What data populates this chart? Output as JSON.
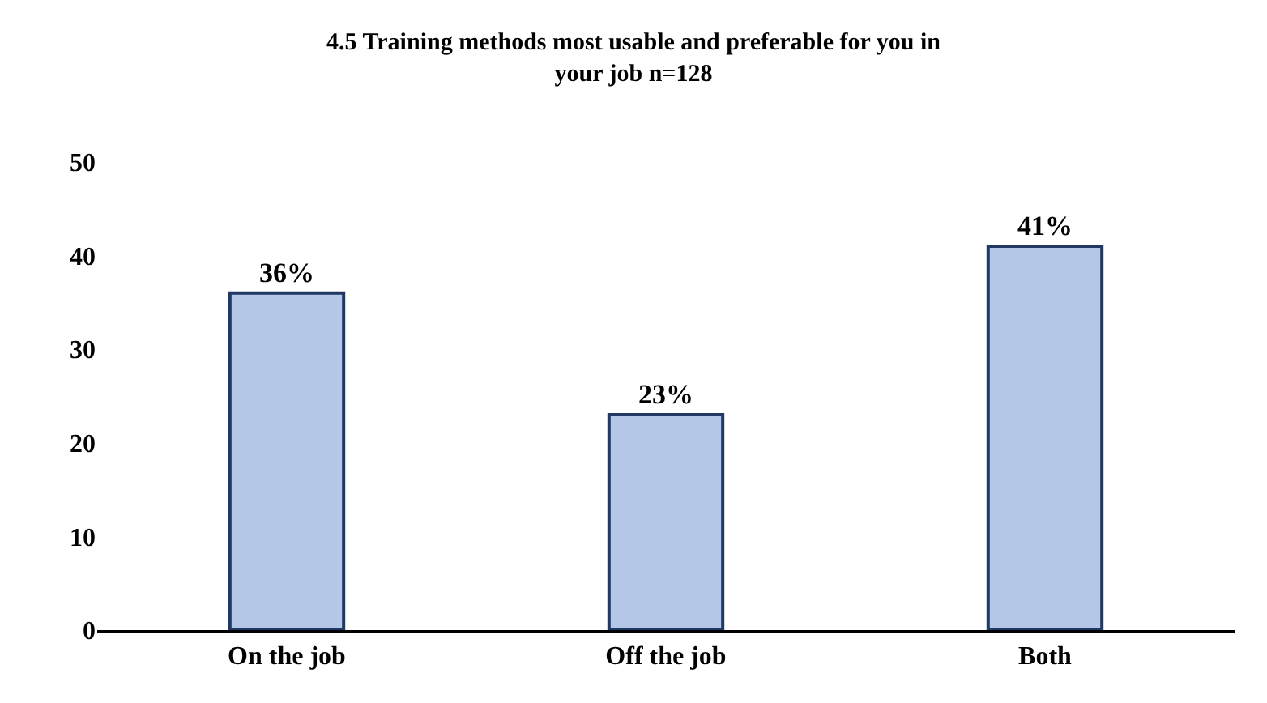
{
  "chart_data": {
    "type": "bar",
    "title": "4.5 Training methods most usable and preferable for you in your job n=128",
    "categories": [
      "On the job",
      "Off the job",
      "Both"
    ],
    "values": [
      36,
      23,
      41
    ],
    "value_labels": [
      "36%",
      "23%",
      "41%"
    ],
    "color": "#b4c7e7",
    "ylim": [
      0,
      50
    ],
    "yticks": [
      0,
      10,
      20,
      30,
      40,
      50
    ],
    "legend": false
  }
}
